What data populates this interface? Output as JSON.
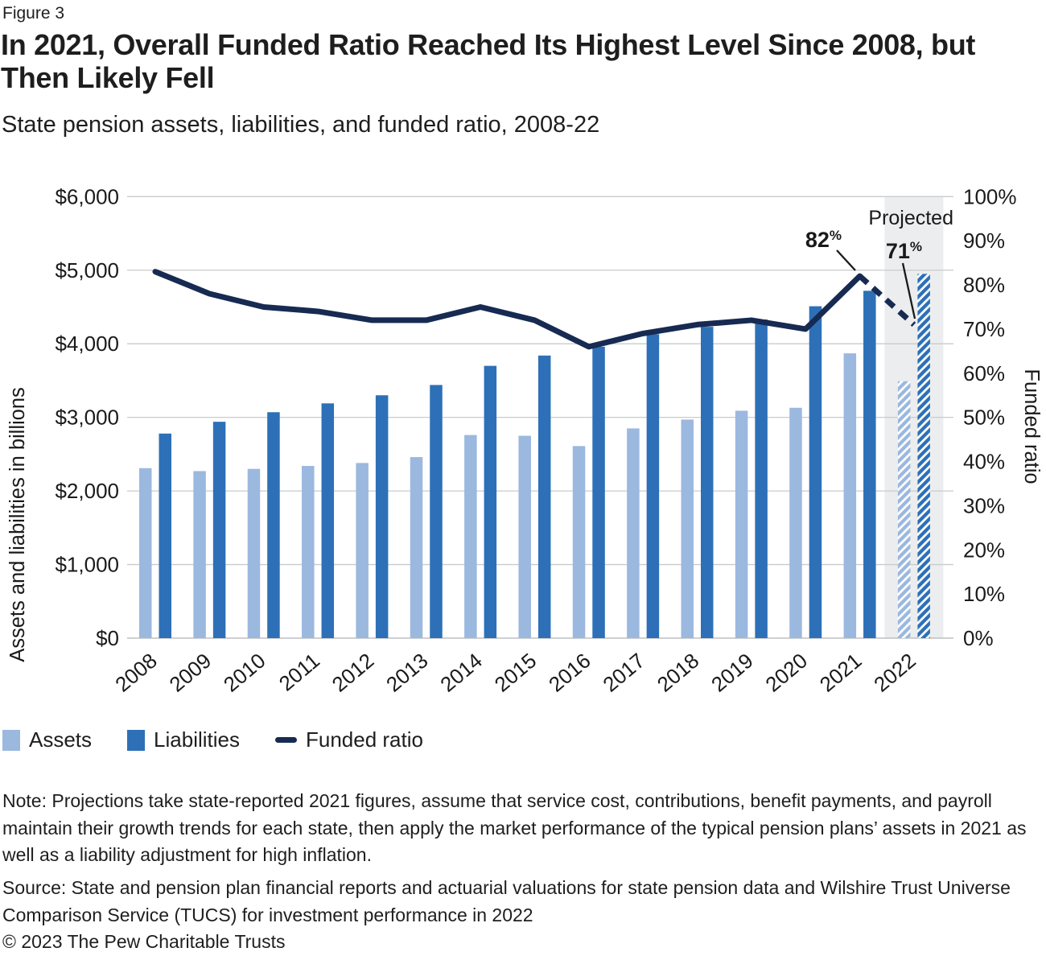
{
  "figure_label": "Figure 3",
  "title": "In 2021, Overall Funded Ratio Reached Its Highest Level Since 2008, but Then Likely Fell",
  "subtitle": "State pension assets, liabilities, and funded ratio, 2008-22",
  "chart_data": {
    "type": "bar+line",
    "categories": [
      "2008",
      "2009",
      "2010",
      "2011",
      "2012",
      "2013",
      "2014",
      "2015",
      "2016",
      "2017",
      "2018",
      "2019",
      "2020",
      "2021",
      "2022"
    ],
    "series": [
      {
        "name": "Assets",
        "type": "bar",
        "axis": "left",
        "color": "#9bb8df",
        "values": [
          2310,
          2270,
          2300,
          2340,
          2380,
          2460,
          2760,
          2750,
          2610,
          2850,
          2970,
          3090,
          3130,
          3870,
          3490
        ]
      },
      {
        "name": "Liabilities",
        "type": "bar",
        "axis": "left",
        "color": "#2d70b7",
        "values": [
          2780,
          2940,
          3070,
          3190,
          3300,
          3440,
          3700,
          3840,
          3960,
          4130,
          4230,
          4330,
          4510,
          4720,
          4950
        ]
      },
      {
        "name": "Funded ratio",
        "type": "line",
        "axis": "right",
        "color": "#172a52",
        "values": [
          83,
          78,
          75,
          74,
          72,
          72,
          75,
          72,
          66,
          69,
          71,
          72,
          70,
          82,
          71
        ]
      }
    ],
    "left_axis": {
      "title": "Assets and liabilities in billions",
      "range": [
        0,
        6000
      ],
      "tick_step": 1000,
      "tick_labels": [
        "$0",
        "$1,000",
        "$2,000",
        "$3,000",
        "$4,000",
        "$5,000",
        "$6,000"
      ]
    },
    "right_axis": {
      "title": "Funded ratio",
      "range": [
        0,
        100
      ],
      "tick_step": 10,
      "tick_labels": [
        "0%",
        "10%",
        "20%",
        "30%",
        "40%",
        "50%",
        "60%",
        "70%",
        "80%",
        "90%",
        "100%"
      ]
    },
    "projected": {
      "label": "Projected",
      "category": "2022",
      "hatched": true,
      "band_color": "#ebedee"
    },
    "annotations": [
      {
        "text": "82",
        "sup": "%",
        "target_year": "2021",
        "value": 82
      },
      {
        "text": "71",
        "sup": "%",
        "target_year": "2022",
        "value": 71
      }
    ],
    "dashed_segment": [
      "2021",
      "2022"
    ],
    "grid": "horizontal",
    "grid_color": "#c9cbcd",
    "baseline_color": "#b2b4b6",
    "legend_position": "bottom-left"
  },
  "note": "Note: Projections take state-reported 2021 figures, assume that service cost, contributions, benefit payments, and payroll maintain their growth trends for each state, then apply the market performance of the typical pension plans’ assets in 2021 as well as a liability adjustment for high inflation.",
  "source": "Source: State and pension plan financial reports and actuarial valuations for state pension data and Wilshire Trust Universe Comparison Service (TUCS) for investment performance in 2022",
  "copyright": "© 2023 The Pew Charitable Trusts"
}
